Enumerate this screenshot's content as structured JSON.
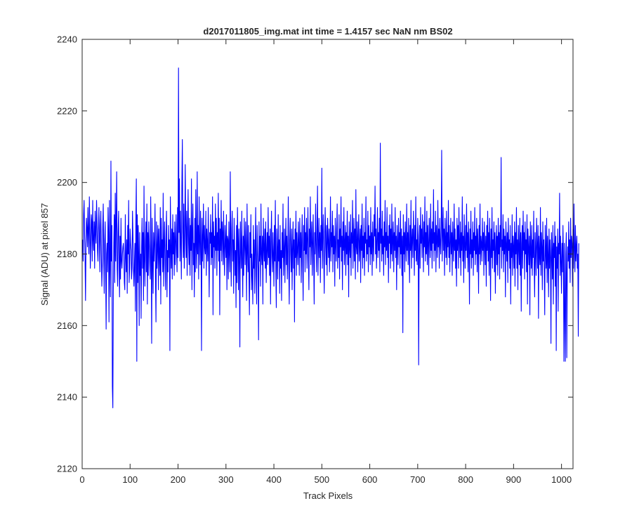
{
  "chart_data": {
    "type": "line",
    "title": "d2017011805_img.mat int time = 1.4157 sec  NaN nm BS02",
    "xlabel": "Track Pixels",
    "ylabel": "Signal (ADU) at pixel 857",
    "xlim": [
      0,
      1024
    ],
    "ylim": [
      2120,
      2240
    ],
    "xticks": [
      0,
      100,
      200,
      300,
      400,
      500,
      600,
      700,
      800,
      900,
      1000
    ],
    "yticks": [
      2120,
      2140,
      2160,
      2180,
      2200,
      2220,
      2240
    ],
    "grid": false,
    "legend": "none",
    "series": [
      {
        "color": "#0000ff",
        "x_start": 1,
        "x_step": 1,
        "values": [
          2184,
          2178,
          2191,
          2195,
          2186,
          2179,
          2167,
          2183,
          2190,
          2187,
          2182,
          2193,
          2186,
          2180,
          2196,
          2188,
          2176,
          2183,
          2191,
          2189,
          2178,
          2195,
          2184,
          2181,
          2189,
          2176,
          2192,
          2186,
          2183,
          2195,
          2190,
          2181,
          2178,
          2187,
          2193,
          2184,
          2175,
          2188,
          2192,
          2180,
          2171,
          2177,
          2188,
          2194,
          2179,
          2169,
          2184,
          2189,
          2176,
          2159,
          2180,
          2183,
          2175,
          2193,
          2186,
          2161,
          2195,
          2176,
          2168,
          2206,
          2178,
          2188,
          2143,
          2137,
          2169,
          2183,
          2191,
          2172,
          2197,
          2178,
          2189,
          2203,
          2176,
          2171,
          2186,
          2192,
          2179,
          2168,
          2185,
          2173,
          2190,
          2178,
          2176,
          2180,
          2182,
          2183,
          2179,
          2172,
          2170,
          2191,
          2179,
          2175,
          2184,
          2169,
          2188,
          2180,
          2195,
          2172,
          2176,
          2187,
          2183,
          2181,
          2173,
          2176,
          2192,
          2185,
          2176,
          2171,
          2177,
          2183,
          2164,
          2189,
          2201,
          2150,
          2191,
          2172,
          2188,
          2179,
          2160,
          2186,
          2174,
          2180,
          2162,
          2182,
          2190,
          2176,
          2186,
          2167,
          2199,
          2178,
          2171,
          2184,
          2189,
          2175,
          2194,
          2166,
          2186,
          2174,
          2189,
          2183,
          2177,
          2173,
          2196,
          2181,
          2155,
          2190,
          2179,
          2169,
          2186,
          2178,
          2183,
          2194,
          2173,
          2161,
          2189,
          2176,
          2182,
          2188,
          2170,
          2187,
          2180,
          2174,
          2193,
          2166,
          2190,
          2179,
          2184,
          2175,
          2197,
          2171,
          2183,
          2189,
          2177,
          2170,
          2186,
          2192,
          2168,
          2181,
          2175,
          2188,
          2179,
          2184,
          2153,
          2196,
          2182,
          2176,
          2187,
          2173,
          2191,
          2180,
          2186,
          2174,
          2189,
          2177,
          2183,
          2191,
          2180,
          2175,
          2193,
          2179,
          2232,
          2186,
          2201,
          2178,
          2192,
          2183,
          2173,
          2199,
          2212,
          2186,
          2179,
          2194,
          2176,
          2183,
          2205,
          2188,
          2179,
          2192,
          2174,
          2186,
          2198,
          2183,
          2177,
          2190,
          2174,
          2188,
          2181,
          2201,
          2170,
          2186,
          2194,
          2177,
          2183,
          2168,
          2190,
          2175,
          2198,
          2182,
          2176,
          2203,
          2180,
          2188,
          2173,
          2196,
          2184,
          2177,
          2192,
          2183,
          2153,
          2190,
          2178,
          2185,
          2194,
          2176,
          2188,
          2182,
          2180,
          2192,
          2174,
          2187,
          2183,
          2178,
          2193,
          2181,
          2168,
          2186,
          2183,
          2191,
          2177,
          2186,
          2179,
          2196,
          2163,
          2189,
          2182,
          2185,
          2176,
          2194,
          2181,
          2190,
          2174,
          2186,
          2181,
          2197,
          2178,
          2190,
          2163,
          2187,
          2181,
          2195,
          2178,
          2189,
          2186,
          2177,
          2192,
          2181,
          2174,
          2188,
          2183,
          2179,
          2191,
          2170,
          2185,
          2184,
          2173,
          2189,
          2180,
          2175,
          2203,
          2182,
          2171,
          2187,
          2192,
          2178,
          2184,
          2169,
          2190,
          2183,
          2174,
          2181,
          2165,
          2188,
          2172,
          2193,
          2184,
          2170,
          2187,
          2179,
          2154,
          2189,
          2183,
          2176,
          2192,
          2179,
          2168,
          2185,
          2174,
          2190,
          2183,
          2177,
          2189,
          2181,
          2167,
          2194,
          2181,
          2175,
          2188,
          2173,
          2163,
          2186,
          2179,
          2191,
          2170,
          2180,
          2174,
          2166,
          2188,
          2176,
          2184,
          2169,
          2181,
          2193,
          2174,
          2166,
          2188,
          2181,
          2176,
          2156,
          2189,
          2178,
          2185,
          2171,
          2194,
          2180,
          2177,
          2185,
          2166,
          2190,
          2182,
          2178,
          2187,
          2176,
          2189,
          2172,
          2181,
          2186,
          2177,
          2193,
          2179,
          2185,
          2174,
          2187,
          2166,
          2183,
          2192,
          2179,
          2175,
          2186,
          2180,
          2171,
          2188,
          2178,
          2195,
          2175,
          2165,
          2187,
          2181,
          2173,
          2191,
          2178,
          2184,
          2169,
          2188,
          2176,
          2181,
          2167,
          2186,
          2179,
          2194,
          2174,
          2180,
          2187,
          2172,
          2183,
          2190,
          2177,
          2185,
          2173,
          2181,
          2196,
          2176,
          2166,
          2184,
          2190,
          2180,
          2175,
          2187,
          2170,
          2182,
          2189,
          2176,
          2184,
          2161,
          2187,
          2179,
          2192,
          2174,
          2186,
          2181,
          2177,
          2189,
          2183,
          2174,
          2190,
          2179,
          2186,
          2172,
          2184,
          2191,
          2177,
          2167,
          2188,
          2181,
          2193,
          2175,
          2186,
          2180,
          2190,
          2176,
          2184,
          2193,
          2179,
          2170,
          2187,
          2182,
          2196,
          2177,
          2185,
          2189,
          2174,
          2183,
          2191,
          2178,
          2166,
          2186,
          2180,
          2194,
          2183,
          2175,
          2187,
          2199,
          2174,
          2182,
          2190,
          2179,
          2186,
          2172,
          2188,
          2181,
          2204,
          2176,
          2185,
          2191,
          2179,
          2169,
          2186,
          2193,
          2182,
          2177,
          2188,
          2174,
          2190,
          2184,
          2179,
          2187,
          2175,
          2183,
          2196,
          2178,
          2186,
          2182,
          2192,
          2175,
          2188,
          2180,
          2185,
          2171,
          2190,
          2183,
          2178,
          2187,
          2194,
          2176,
          2184,
          2179,
          2191,
          2173,
          2187,
          2182,
          2196,
          2178,
          2185,
          2170,
          2189,
          2181,
          2193,
          2177,
          2183,
          2188,
          2174,
          2186,
          2180,
          2192,
          2177,
          2185,
          2168,
          2189,
          2182,
          2179,
          2191,
          2174,
          2186,
          2183,
          2195,
          2176,
          2184,
          2190,
          2178,
          2187,
          2173,
          2198,
          2182,
          2180,
          2189,
          2175,
          2185,
          2191,
          2178,
          2183,
          2187,
          2172,
          2188,
          2181,
          2194,
          2176,
          2185,
          2179,
          2190,
          2174,
          2186,
          2183,
          2196,
          2178,
          2184,
          2180,
          2192,
          2175,
          2188,
          2182,
          2185,
          2177,
          2193,
          2180,
          2186,
          2174,
          2189,
          2183,
          2178,
          2191,
          2185,
          2199,
          2180,
          2187,
          2176,
          2184,
          2193,
          2179,
          2186,
          2181,
          2190,
          2175,
          2211,
          2183,
          2187,
          2178,
          2192,
          2180,
          2185,
          2174,
          2189,
          2182,
          2195,
          2177,
          2186,
          2181,
          2193,
          2179,
          2185,
          2172,
          2188,
          2183,
          2191,
          2176,
          2187,
          2180,
          2194,
          2178,
          2184,
          2189,
          2175,
          2186,
          2181,
          2193,
          2179,
          2185,
          2170,
          2188,
          2183,
          2177,
          2190,
          2182,
          2186,
          2176,
          2192,
          2180,
          2187,
          2174,
          2185,
          2158,
          2191,
          2180,
          2186,
          2175,
          2189,
          2183,
          2178,
          2194,
          2181,
          2186,
          2177,
          2190,
          2183,
          2172,
          2188,
          2181,
          2195,
          2176,
          2184,
          2187,
          2179,
          2192,
          2185,
          2174,
          2188,
          2181,
          2196,
          2178,
          2184,
          2177,
          2190,
          2185,
          2149,
          2181,
          2188,
          2176,
          2193,
          2183,
          2187,
          2179,
          2191,
          2185,
          2175,
          2189,
          2182,
          2196,
          2178,
          2186,
          2180,
          2192,
          2177,
          2188,
          2183,
          2174,
          2190,
          2185,
          2179,
          2194,
          2181,
          2187,
          2176,
          2189,
          2183,
          2198,
          2178,
          2186,
          2181,
          2192,
          2175,
          2188,
          2184,
          2179,
          2195,
          2182,
          2187,
          2176,
          2190,
          2183,
          2180,
          2188,
          2209,
          2178,
          2185,
          2193,
          2181,
          2187,
          2174,
          2190,
          2184,
          2179,
          2192,
          2177,
          2186,
          2182,
          2195,
          2179,
          2188,
          2175,
          2183,
          2190,
          2180,
          2186,
          2174,
          2189,
          2183,
          2178,
          2194,
          2181,
          2187,
          2176,
          2184,
          2171,
          2190,
          2181,
          2188,
          2176,
          2193,
          2183,
          2179,
          2189,
          2174,
          2186,
          2181,
          2196,
          2178,
          2185,
          2172,
          2191,
          2183,
          2176,
          2188,
          2181,
          2194,
          2179,
          2186,
          2175,
          2189,
          2182,
          2166,
          2187,
          2180,
          2192,
          2176,
          2184,
          2179,
          2189,
          2174,
          2186,
          2181,
          2193,
          2177,
          2185,
          2180,
          2190,
          2175,
          2187,
          2182,
          2169,
          2188,
          2180,
          2194,
          2177,
          2185,
          2183,
          2178,
          2190,
          2181,
          2186,
          2174,
          2189,
          2183,
          2177,
          2185,
          2171,
          2188,
          2181,
          2192,
          2178,
          2186,
          2174,
          2190,
          2182,
          2167,
          2187,
          2179,
          2193,
          2176,
          2184,
          2181,
          2189,
          2175,
          2186,
          2169,
          2182,
          2188,
          2177,
          2185,
          2174,
          2190,
          2180,
          2186,
          2173,
          2188,
          2182,
          2207,
          2176,
          2184,
          2181,
          2191,
          2175,
          2187,
          2180,
          2185,
          2168,
          2189,
          2183,
          2178,
          2186,
          2172,
          2190,
          2181,
          2184,
          2176,
          2188,
          2166,
          2183,
          2179,
          2191,
          2174,
          2185,
          2182,
          2176,
          2189,
          2171,
          2186,
          2180,
          2193,
          2176,
          2184,
          2170,
          2188,
          2182,
          2177,
          2190,
          2174,
          2186,
          2164,
          2183,
          2188,
          2176,
          2192,
          2181,
          2186,
          2173,
          2189,
          2180,
          2184,
          2175,
          2191,
          2166,
          2187,
          2182,
          2177,
          2185,
          2163,
          2189,
          2181,
          2176,
          2188,
          2174,
          2184,
          2179,
          2192,
          2176,
          2168,
          2186,
          2181,
          2174,
          2190,
          2183,
          2176,
          2188,
          2162,
          2185,
          2180,
          2177,
          2193,
          2174,
          2186,
          2182,
          2170,
          2189,
          2178,
          2184,
          2175,
          2163,
          2188,
          2181,
          2176,
          2190,
          2172,
          2185,
          2180,
          2168,
          2187,
          2176,
          2184,
          2179,
          2155,
          2186,
          2181,
          2173,
          2188,
          2166,
          2183,
          2179,
          2189,
          2171,
          2185,
          2153,
          2182,
          2176,
          2187,
          2164,
          2183,
          2180,
          2197,
          2174,
          2185,
          2178,
          2169,
          2183,
          2175,
          2188,
          2179,
          2150,
          2183,
          2163,
          2150,
          2180,
          2186,
          2151,
          2174,
          2182,
          2178,
          2189,
          2176,
          2184,
          2172,
          2190,
          2179,
          2185,
          2183,
          2171,
          2187,
          2176,
          2194,
          2181,
          2175,
          2188,
          2178,
          2182,
          2185,
          2176,
          2180,
          2157,
          2183
        ]
      }
    ]
  }
}
